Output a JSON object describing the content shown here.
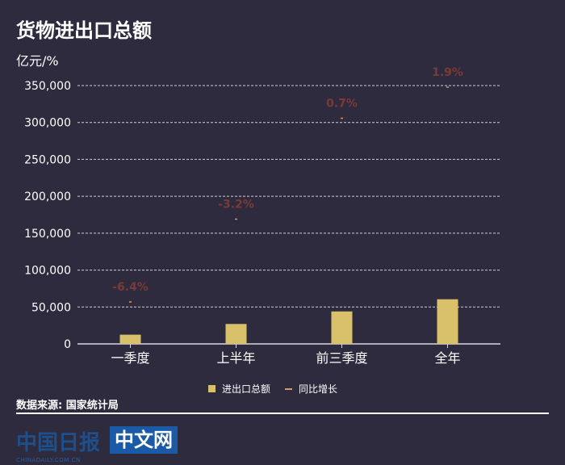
{
  "header": {
    "title": "货物进出口总额",
    "unit": "亿元/%"
  },
  "legend": {
    "bar_label": "进出口总额",
    "line_label": "同比增长"
  },
  "footer": {
    "source": "数据来源: 国家统计局",
    "logo_text": "中国日报",
    "logo_sub": "CHINADAILY.COM.CN",
    "logo_box": "中文网"
  },
  "colors": {
    "background": "#2d2b3d",
    "bar": "#d9c06a",
    "growth_label": "#7a3a36",
    "grid": "#cfcfd6"
  },
  "chart_data": {
    "type": "bar",
    "categories": [
      "一季度",
      "上半年",
      "前三季度",
      "全年"
    ],
    "series": [
      {
        "name": "进出口总额",
        "type": "bar",
        "values": [
          12500,
          27000,
          44000,
          60500
        ]
      },
      {
        "name": "同比增长",
        "type": "line",
        "values": [
          -6.4,
          -3.2,
          0.7,
          1.9
        ]
      }
    ],
    "growth_labels": [
      "-6.4%",
      "-3.2%",
      "0.7%",
      "1.9%"
    ],
    "y_ticks": [
      "0",
      "50,000",
      "100,000",
      "150,000",
      "200,000",
      "250,000",
      "300,000",
      "350,000"
    ],
    "ylim": [
      0,
      350000
    ],
    "grid": true,
    "legend_position": "bottom"
  }
}
